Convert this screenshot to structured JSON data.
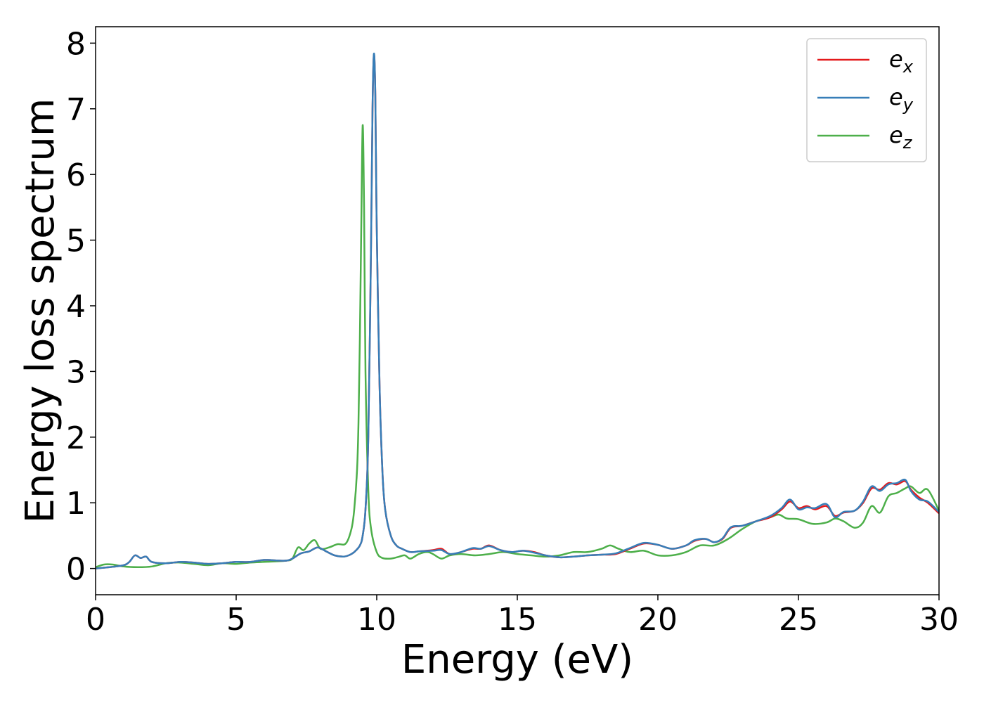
{
  "chart_data": {
    "type": "line",
    "title": "",
    "xlabel": "Energy (eV)",
    "ylabel": "Energy loss spectrum",
    "xlim": [
      0,
      30
    ],
    "ylim": [
      -0.4,
      8.25
    ],
    "xticks": [
      0,
      5,
      10,
      15,
      20,
      25,
      30
    ],
    "yticks": [
      0,
      1,
      2,
      3,
      4,
      5,
      6,
      7,
      8
    ],
    "grid": false,
    "legend_position": "top-right",
    "series": [
      {
        "name": "e_x",
        "legend_base": "e",
        "legend_sub": "x",
        "color": "#e41a1c",
        "x": [
          0,
          0.5,
          1.0,
          1.2,
          1.4,
          1.6,
          1.8,
          2.0,
          2.5,
          3.0,
          3.5,
          4.0,
          4.5,
          5.0,
          5.5,
          6.0,
          6.5,
          6.8,
          7.0,
          7.3,
          7.6,
          7.9,
          8.2,
          8.5,
          8.8,
          9.0,
          9.2,
          9.4,
          9.5,
          9.6,
          9.7,
          9.8,
          9.85,
          9.9,
          9.95,
          10.0,
          10.1,
          10.2,
          10.3,
          10.5,
          10.7,
          10.9,
          11.2,
          11.5,
          12.0,
          12.3,
          12.6,
          13.0,
          13.4,
          13.7,
          14.0,
          14.4,
          14.8,
          15.2,
          15.6,
          16.0,
          16.5,
          17.0,
          17.5,
          18.0,
          18.5,
          19.0,
          19.5,
          20.0,
          20.5,
          21.0,
          21.3,
          21.7,
          22.0,
          22.3,
          22.6,
          23.0,
          23.5,
          24.0,
          24.4,
          24.7,
          25.0,
          25.3,
          25.6,
          26.0,
          26.3,
          26.6,
          27.0,
          27.3,
          27.6,
          27.9,
          28.2,
          28.5,
          28.8,
          29.0,
          29.3,
          29.6,
          30.0
        ],
        "y": [
          0.0,
          0.02,
          0.05,
          0.1,
          0.2,
          0.16,
          0.18,
          0.1,
          0.08,
          0.1,
          0.09,
          0.07,
          0.08,
          0.1,
          0.1,
          0.13,
          0.12,
          0.12,
          0.15,
          0.23,
          0.26,
          0.32,
          0.26,
          0.2,
          0.18,
          0.2,
          0.25,
          0.35,
          0.5,
          0.9,
          2.0,
          5.0,
          7.0,
          7.82,
          7.2,
          5.2,
          2.8,
          1.5,
          0.9,
          0.5,
          0.35,
          0.3,
          0.25,
          0.26,
          0.28,
          0.3,
          0.22,
          0.25,
          0.3,
          0.3,
          0.35,
          0.28,
          0.25,
          0.27,
          0.25,
          0.2,
          0.17,
          0.18,
          0.2,
          0.21,
          0.22,
          0.3,
          0.38,
          0.36,
          0.3,
          0.35,
          0.42,
          0.45,
          0.4,
          0.45,
          0.62,
          0.65,
          0.72,
          0.78,
          0.9,
          1.02,
          0.92,
          0.95,
          0.9,
          0.95,
          0.8,
          0.85,
          0.88,
          1.0,
          1.22,
          1.2,
          1.3,
          1.28,
          1.33,
          1.2,
          1.08,
          1.0,
          0.84
        ]
      },
      {
        "name": "e_y",
        "legend_base": "e",
        "legend_sub": "y",
        "color": "#377eb8",
        "x": [
          0,
          0.5,
          1.0,
          1.2,
          1.4,
          1.6,
          1.8,
          2.0,
          2.5,
          3.0,
          3.5,
          4.0,
          4.5,
          5.0,
          5.5,
          6.0,
          6.5,
          6.8,
          7.0,
          7.3,
          7.6,
          7.9,
          8.2,
          8.5,
          8.8,
          9.0,
          9.2,
          9.4,
          9.5,
          9.6,
          9.7,
          9.8,
          9.85,
          9.9,
          9.95,
          10.0,
          10.1,
          10.2,
          10.3,
          10.5,
          10.7,
          10.9,
          11.2,
          11.5,
          12.0,
          12.3,
          12.6,
          13.0,
          13.4,
          13.7,
          14.0,
          14.4,
          14.8,
          15.2,
          15.6,
          16.0,
          16.5,
          17.0,
          17.5,
          18.0,
          18.5,
          19.0,
          19.5,
          20.0,
          20.5,
          21.0,
          21.3,
          21.7,
          22.0,
          22.3,
          22.6,
          23.0,
          23.5,
          24.0,
          24.4,
          24.7,
          25.0,
          25.3,
          25.6,
          26.0,
          26.3,
          26.6,
          27.0,
          27.3,
          27.6,
          27.9,
          28.2,
          28.5,
          28.8,
          29.0,
          29.3,
          29.6,
          30.0
        ],
        "y": [
          0.0,
          0.02,
          0.05,
          0.1,
          0.2,
          0.16,
          0.18,
          0.1,
          0.08,
          0.1,
          0.09,
          0.07,
          0.08,
          0.1,
          0.1,
          0.13,
          0.12,
          0.12,
          0.15,
          0.23,
          0.26,
          0.32,
          0.26,
          0.2,
          0.18,
          0.2,
          0.25,
          0.35,
          0.5,
          0.9,
          2.0,
          5.0,
          7.0,
          7.84,
          7.2,
          5.2,
          2.8,
          1.5,
          0.9,
          0.5,
          0.35,
          0.3,
          0.25,
          0.26,
          0.27,
          0.28,
          0.22,
          0.25,
          0.31,
          0.3,
          0.34,
          0.28,
          0.25,
          0.27,
          0.24,
          0.2,
          0.17,
          0.18,
          0.2,
          0.21,
          0.23,
          0.31,
          0.39,
          0.36,
          0.3,
          0.35,
          0.43,
          0.45,
          0.4,
          0.46,
          0.63,
          0.65,
          0.72,
          0.8,
          0.92,
          1.05,
          0.9,
          0.93,
          0.92,
          0.98,
          0.78,
          0.86,
          0.88,
          1.02,
          1.25,
          1.18,
          1.28,
          1.3,
          1.35,
          1.18,
          1.05,
          1.02,
          0.86
        ]
      },
      {
        "name": "e_z",
        "legend_base": "e",
        "legend_sub": "z",
        "color": "#4daf4a",
        "x": [
          0,
          0.3,
          0.6,
          1.0,
          1.5,
          2.0,
          2.5,
          3.0,
          3.5,
          4.0,
          4.5,
          5.0,
          5.5,
          6.0,
          6.5,
          6.8,
          7.0,
          7.2,
          7.4,
          7.6,
          7.8,
          8.0,
          8.3,
          8.6,
          8.9,
          9.1,
          9.2,
          9.3,
          9.35,
          9.4,
          9.45,
          9.5,
          9.55,
          9.6,
          9.7,
          9.8,
          10.0,
          10.2,
          10.5,
          10.8,
          11.0,
          11.2,
          11.5,
          11.8,
          12.0,
          12.3,
          12.6,
          13.0,
          13.5,
          14.0,
          14.5,
          15.0,
          15.5,
          16.0,
          16.5,
          17.0,
          17.5,
          18.0,
          18.3,
          18.6,
          19.0,
          19.5,
          20.0,
          20.5,
          21.0,
          21.5,
          22.0,
          22.5,
          23.0,
          23.5,
          24.0,
          24.3,
          24.6,
          25.0,
          25.5,
          26.0,
          26.3,
          26.6,
          27.0,
          27.3,
          27.6,
          27.9,
          28.2,
          28.5,
          28.8,
          29.0,
          29.3,
          29.6,
          30.0
        ],
        "y": [
          0.02,
          0.06,
          0.06,
          0.03,
          0.02,
          0.03,
          0.08,
          0.09,
          0.07,
          0.05,
          0.08,
          0.07,
          0.09,
          0.1,
          0.11,
          0.12,
          0.15,
          0.32,
          0.28,
          0.38,
          0.43,
          0.3,
          0.32,
          0.37,
          0.38,
          0.6,
          0.9,
          1.5,
          2.2,
          3.5,
          5.2,
          6.75,
          5.5,
          3.0,
          1.2,
          0.6,
          0.25,
          0.16,
          0.15,
          0.18,
          0.2,
          0.15,
          0.22,
          0.25,
          0.22,
          0.15,
          0.2,
          0.22,
          0.2,
          0.22,
          0.25,
          0.22,
          0.2,
          0.18,
          0.2,
          0.25,
          0.25,
          0.3,
          0.35,
          0.3,
          0.25,
          0.27,
          0.2,
          0.2,
          0.25,
          0.35,
          0.35,
          0.45,
          0.6,
          0.72,
          0.78,
          0.82,
          0.76,
          0.75,
          0.68,
          0.7,
          0.76,
          0.72,
          0.62,
          0.7,
          0.95,
          0.85,
          1.1,
          1.15,
          1.22,
          1.25,
          1.15,
          1.2,
          0.88
        ]
      }
    ]
  }
}
